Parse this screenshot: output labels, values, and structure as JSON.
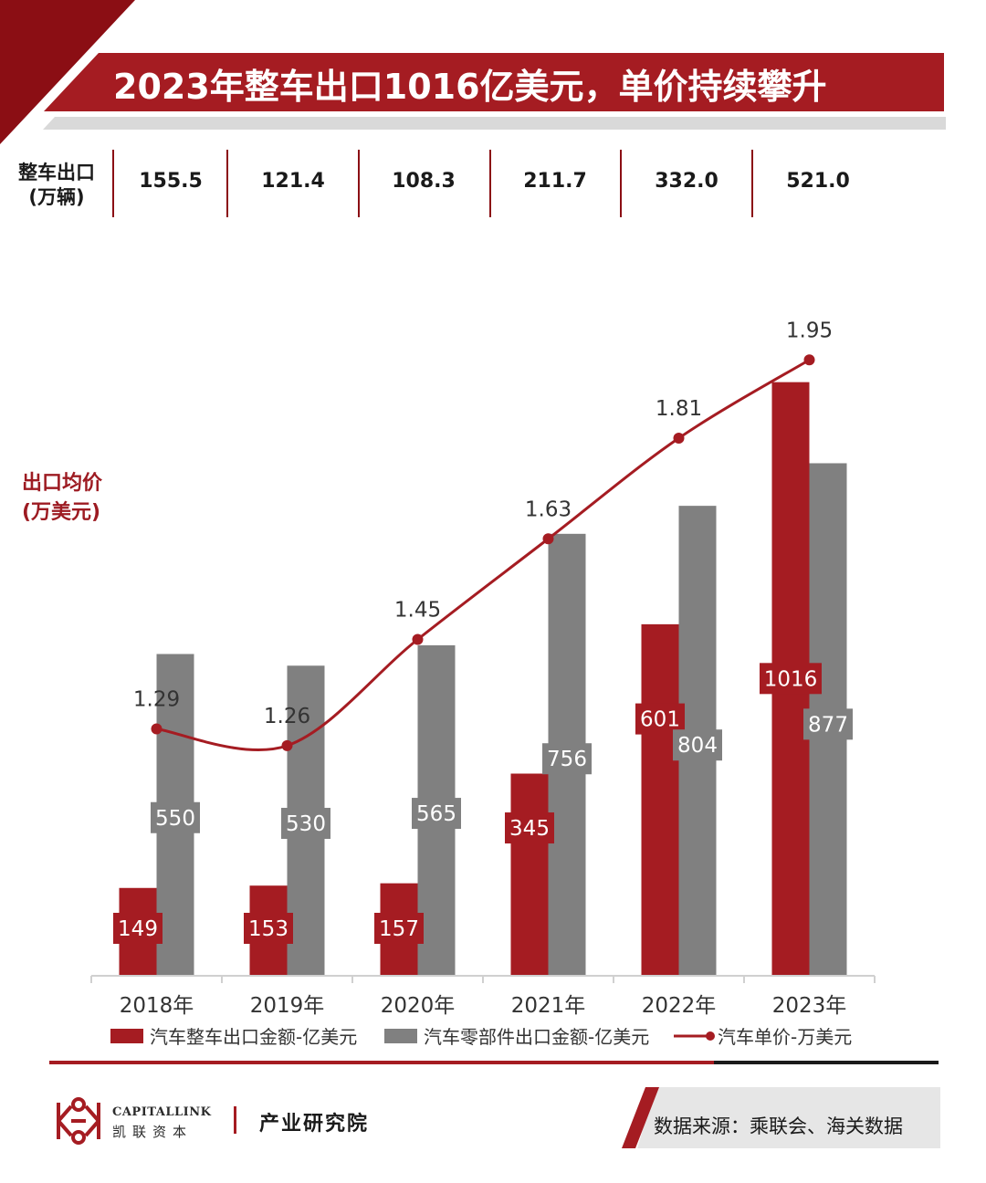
{
  "title": "2023年整车出口1016亿美元，单价持续攀升",
  "units_row": {
    "label_line1": "整车出口",
    "label_line2": "(万辆)",
    "values": [
      "155.5",
      "121.4",
      "108.3",
      "211.7",
      "332.0",
      "521.0"
    ]
  },
  "avg_price_axis_label_line1": "出口均价",
  "avg_price_axis_label_line2": "(万美元)",
  "chart_data": {
    "type": "bar",
    "categories": [
      "2018年",
      "2019年",
      "2020年",
      "2021年",
      "2022年",
      "2023年"
    ],
    "series": [
      {
        "name": "汽车整车出口金额-亿美元",
        "kind": "bar",
        "color": "#a51c22",
        "values": [
          149,
          153,
          157,
          345,
          601,
          1016
        ]
      },
      {
        "name": "汽车零部件出口金额-亿美元",
        "kind": "bar",
        "color": "#808080",
        "values": [
          550,
          530,
          565,
          756,
          804,
          877
        ]
      },
      {
        "name": "汽车单价-万美元",
        "kind": "line",
        "color": "#a51c22",
        "values": [
          1.29,
          1.26,
          1.45,
          1.63,
          1.81,
          1.95
        ]
      }
    ],
    "bar_axis_range": [
      0,
      1150
    ],
    "line_axis_range": [
      0.85,
      2.05
    ],
    "grid": false,
    "legend_position": "bottom"
  },
  "source": "数据来源：乘联会、海关数据",
  "logo": {
    "name_en": "CAPITALLINK",
    "name_cn": "凯联资本",
    "institute": "产业研究院"
  },
  "colors": {
    "brand_red": "#a51c22",
    "dark_red": "#8b0e14",
    "gray_bar": "#808080",
    "light_gray": "#d9d9d9"
  }
}
